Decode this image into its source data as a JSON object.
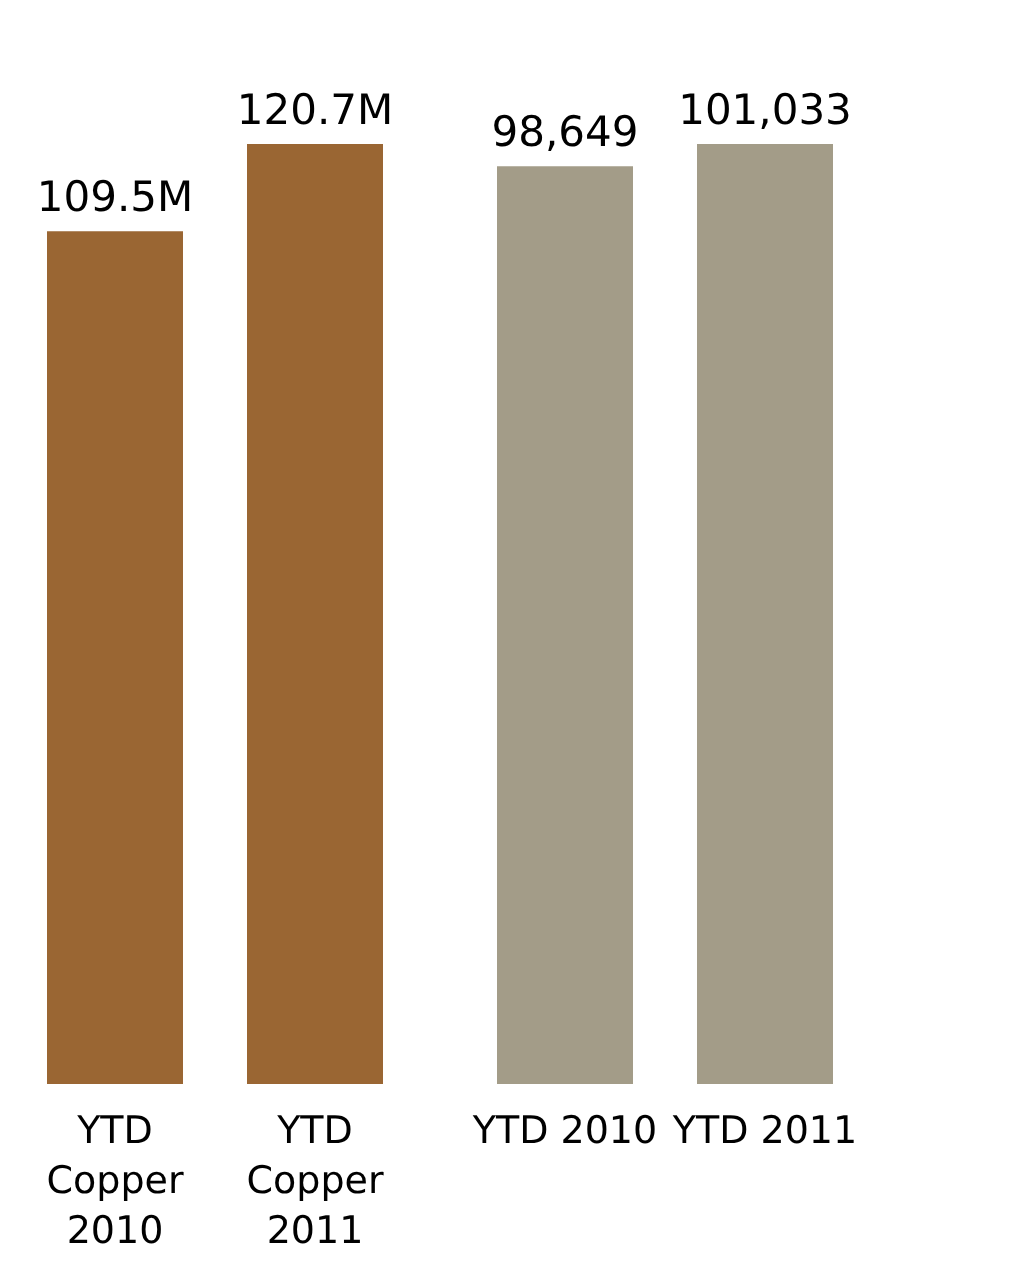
{
  "chart_data": [
    {
      "type": "bar",
      "categories": [
        "YTD Copper 2010",
        "YTD Copper 2011"
      ],
      "series": [
        {
          "color": "#9a6633",
          "values": [
            109500000,
            120700000
          ],
          "value_labels": [
            "109.5M",
            "120.7M"
          ]
        }
      ]
    },
    {
      "type": "bar",
      "categories": [
        "YTD 2010",
        "YTD 2011"
      ],
      "series": [
        {
          "color": "#a39c88",
          "values": [
            98649,
            101033
          ],
          "value_labels": [
            "98,649",
            "101,033"
          ]
        }
      ]
    }
  ]
}
